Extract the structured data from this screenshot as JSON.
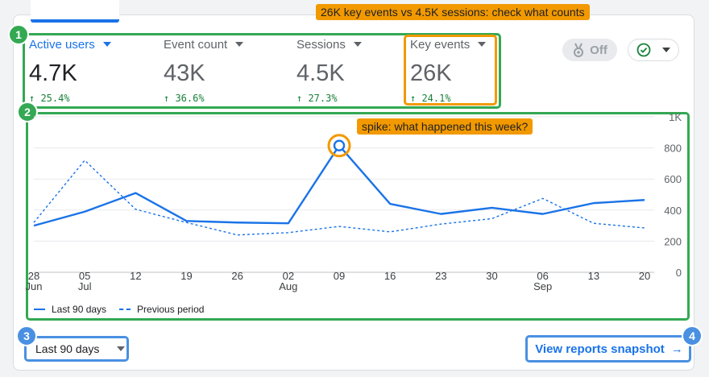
{
  "annotations": {
    "callout_top": "26K key events vs 4.5K sessions: check what counts",
    "callout_spike": "spike: what happened this week?",
    "badges": [
      "1",
      "2",
      "3",
      "4"
    ]
  },
  "metrics": [
    {
      "label": "Active users",
      "value": "4.7K",
      "delta": "25.4%",
      "active": true
    },
    {
      "label": "Event count",
      "value": "43K",
      "delta": "36.6%",
      "active": false
    },
    {
      "label": "Sessions",
      "value": "4.5K",
      "delta": "27.3%",
      "active": false
    },
    {
      "label": "Key events",
      "value": "26K",
      "delta": "24.1%",
      "active": false
    }
  ],
  "toolbar": {
    "toggle_label": "Off",
    "toggle_icon": "medal-icon",
    "check_icon": "check-circle-icon"
  },
  "legend": {
    "current": "Last 90 days",
    "previous": "Previous period"
  },
  "date_range": {
    "label": "Last 90 days"
  },
  "view_link": {
    "label": "View reports snapshot",
    "arrow": "→"
  },
  "colors": {
    "accent": "#1a73e8",
    "positive": "#188038",
    "annotation_green": "#34a853",
    "annotation_blue": "#4a90e2",
    "annotation_orange": "#f29900"
  },
  "chart_data": {
    "type": "line",
    "x": [
      "28 Jun",
      "05 Jul",
      "12",
      "19",
      "26",
      "02 Aug",
      "09",
      "16",
      "23",
      "30",
      "06 Sep",
      "13",
      "20"
    ],
    "x_tick_labels": [
      {
        "top": "28",
        "bottom": "Jun"
      },
      {
        "top": "05",
        "bottom": "Jul"
      },
      {
        "top": "12",
        "bottom": ""
      },
      {
        "top": "19",
        "bottom": ""
      },
      {
        "top": "26",
        "bottom": ""
      },
      {
        "top": "02",
        "bottom": "Aug"
      },
      {
        "top": "09",
        "bottom": ""
      },
      {
        "top": "16",
        "bottom": ""
      },
      {
        "top": "23",
        "bottom": ""
      },
      {
        "top": "30",
        "bottom": ""
      },
      {
        "top": "06",
        "bottom": "Sep"
      },
      {
        "top": "13",
        "bottom": ""
      },
      {
        "top": "20",
        "bottom": ""
      }
    ],
    "y_ticks": [
      "0",
      "200",
      "400",
      "600",
      "800",
      "1K"
    ],
    "ylim": [
      0,
      1000
    ],
    "grid": true,
    "legend_position": "bottom-left",
    "series": [
      {
        "name": "Last 90 days",
        "style": "solid",
        "values": [
          300,
          390,
          510,
          330,
          320,
          315,
          815,
          440,
          375,
          415,
          375,
          445,
          465
        ]
      },
      {
        "name": "Previous period",
        "style": "dashed",
        "values": [
          320,
          720,
          405,
          320,
          240,
          255,
          295,
          260,
          310,
          345,
          475,
          315,
          285
        ]
      }
    ],
    "highlight_index": 6
  }
}
